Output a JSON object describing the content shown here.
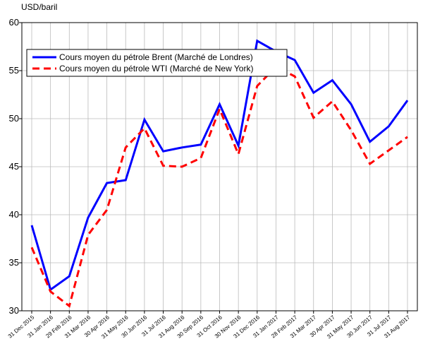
{
  "chart_data": {
    "type": "line",
    "ylabel": "USD/baril",
    "categories": [
      "31 Dec 2015",
      "31 Jan 2016",
      "29 Feb 2016",
      "31 Mar 2016",
      "30 Apr 2016",
      "31 May 2016",
      "30 Jun 2016",
      "31 Jul 2016",
      "31 Aug 2016",
      "30 Sep 2016",
      "31 Oct 2016",
      "30 Nov 2016",
      "31 Dec 2016",
      "31 Jan 2017",
      "28 Feb 2017",
      "31 Mar 2017",
      "30 Apr 2017",
      "31 May 2017",
      "30 Jun 2017",
      "31 Jul 2017",
      "31 Aug 2017"
    ],
    "series": [
      {
        "name": "Cours moyen du pétrole Brent (Marché de Londres)",
        "color": "#0000ff",
        "dash": false,
        "values": [
          38.9,
          32.2,
          33.6,
          39.7,
          43.3,
          43.6,
          49.9,
          46.6,
          47.0,
          47.3,
          51.5,
          47.2,
          58.1,
          57.0,
          56.1,
          52.7,
          54.0,
          51.5,
          47.6,
          49.2,
          51.9
        ]
      },
      {
        "name": "Cours moyen du pétrole WTI (Marché de New York)",
        "color": "#ff0000",
        "dash": true,
        "values": [
          36.6,
          32.0,
          30.5,
          37.9,
          40.5,
          47.0,
          49.0,
          45.1,
          45.0,
          45.9,
          51.0,
          46.3,
          53.4,
          55.4,
          54.4,
          50.1,
          51.8,
          48.8,
          45.3,
          46.7,
          48.1
        ]
      }
    ],
    "ylim": [
      30,
      60
    ],
    "yticks": [
      30,
      35,
      40,
      45,
      50,
      55,
      60
    ],
    "grid": true,
    "legend": "top-left"
  }
}
